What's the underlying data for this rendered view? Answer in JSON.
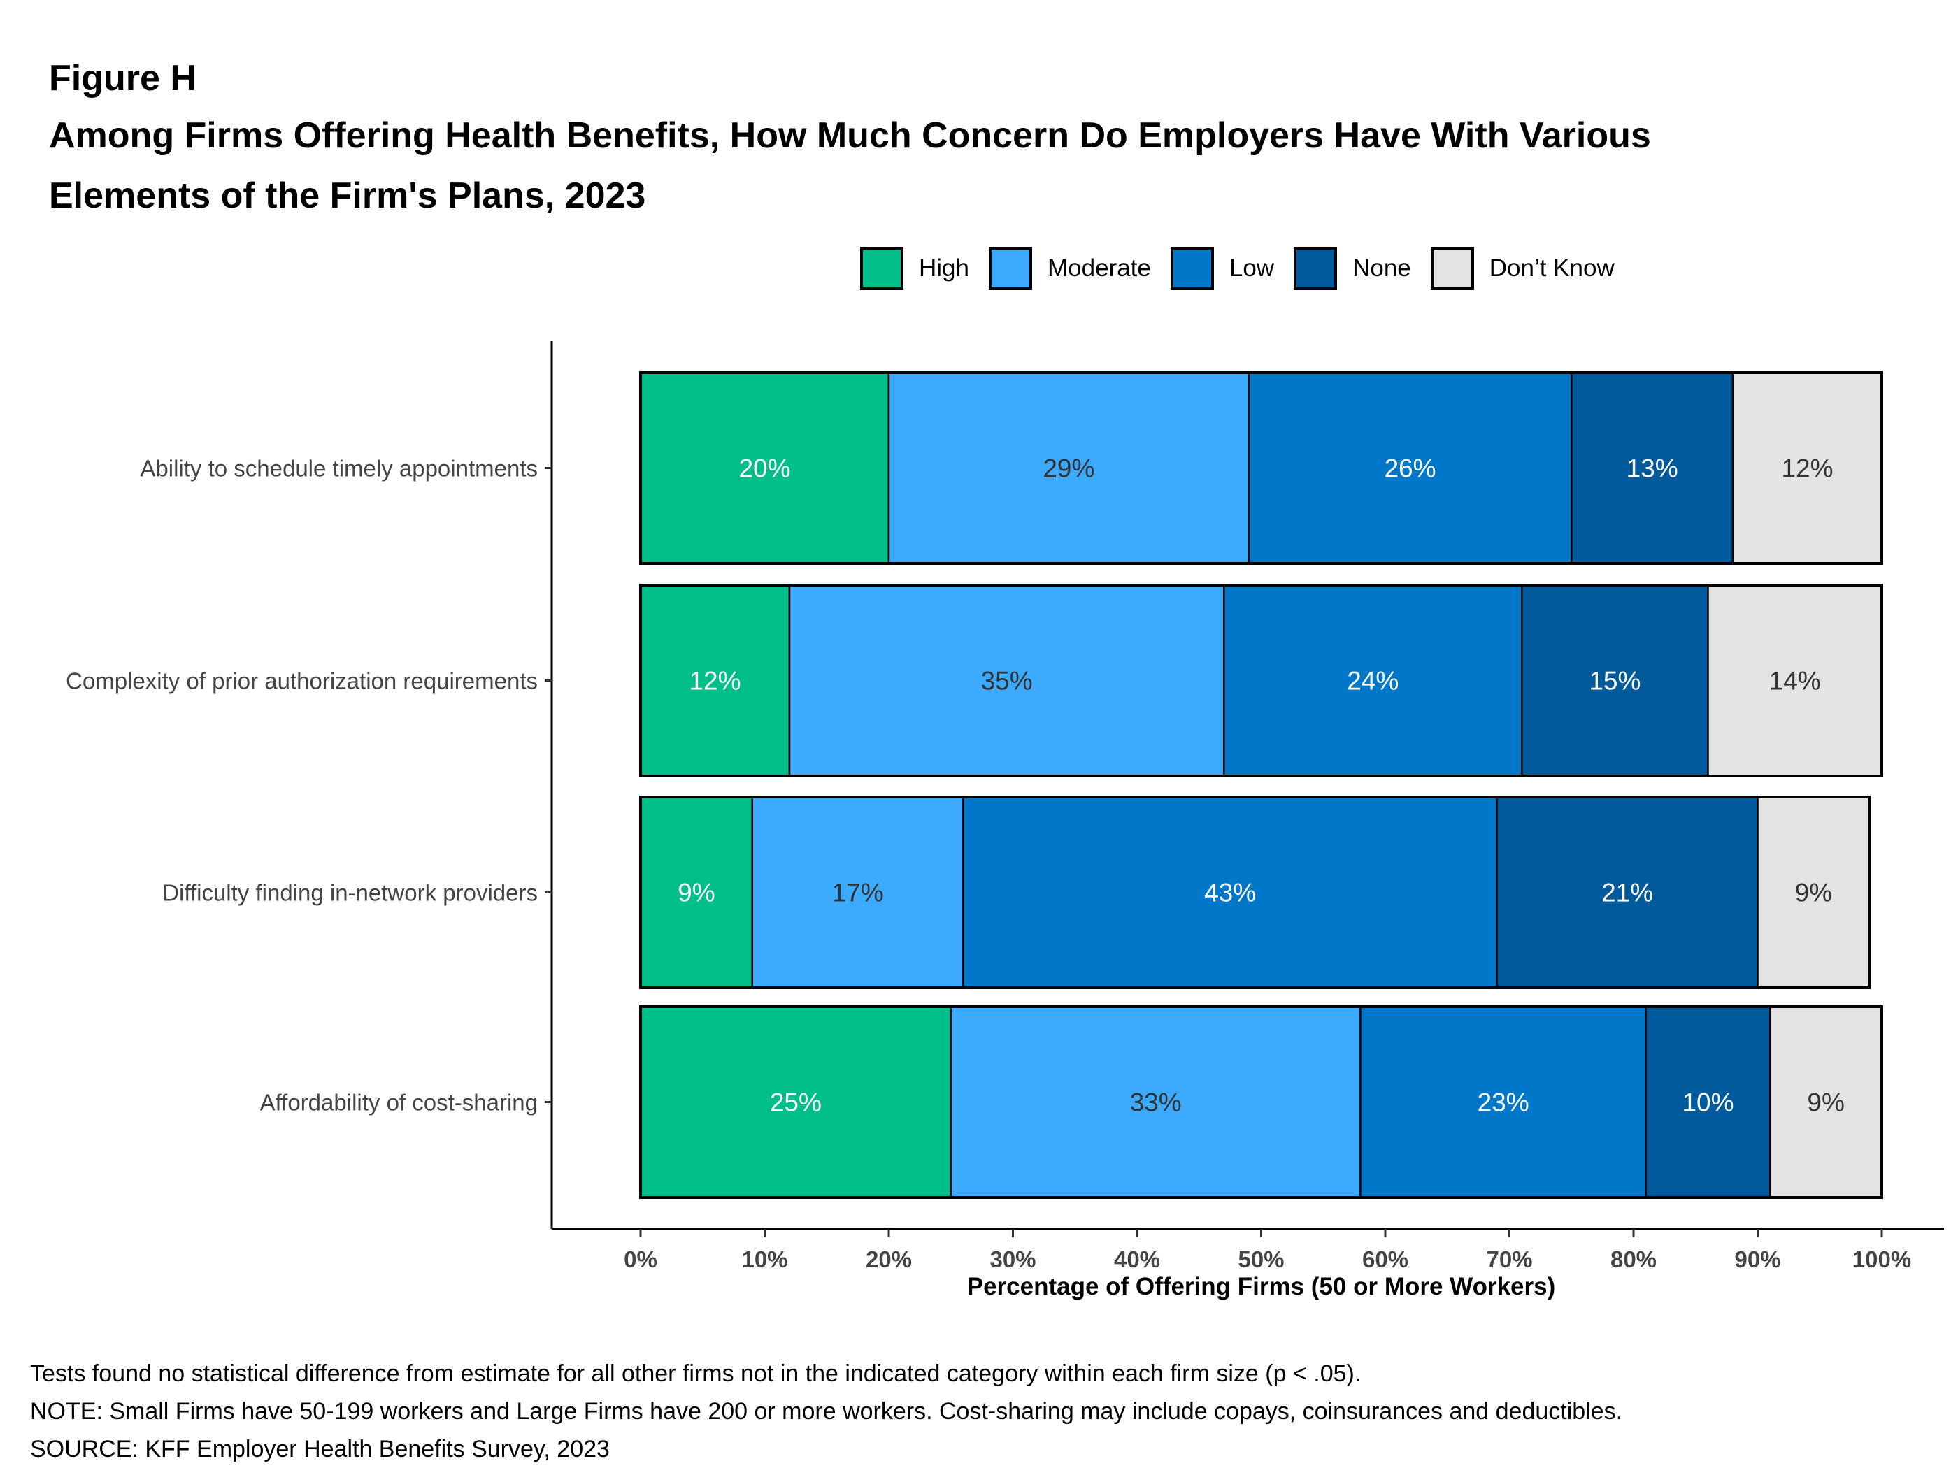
{
  "figure_label": "Figure H",
  "title_line1": "Among Firms Offering Health Benefits, How Much Concern Do Employers Have With Various",
  "title_line2": "Elements of the Firm's Plans, 2023",
  "legend": [
    {
      "label": "High",
      "color": "#00BE87"
    },
    {
      "label": "Moderate",
      "color": "#3CAAFF"
    },
    {
      "label": "Low",
      "color": "#0077C8"
    },
    {
      "label": "None",
      "color": "#005A9B"
    },
    {
      "label": "Don’t Know",
      "color": "#E3E3E3"
    }
  ],
  "footnotes": [
    "Tests found no statistical difference from estimate for all other firms not in the indicated category within each firm size (p < .05).",
    "NOTE: Small Firms have 50-199 workers and Large Firms have 200 or more workers.  Cost-sharing may include copays, coinsurances and deductibles.",
    "SOURCE: KFF Employer Health Benefits Survey, 2023"
  ],
  "chart_data": {
    "type": "bar",
    "orientation": "horizontal",
    "stacked": true,
    "title": "Among Firms Offering Health Benefits, How Much Concern Do Employers Have With Various Elements of the Firm's Plans, 2023",
    "xlabel": "Percentage of Offering Firms (50 or More Workers)",
    "ylabel": "",
    "xlim": [
      0,
      100
    ],
    "x_ticks": [
      "0%",
      "10%",
      "20%",
      "30%",
      "40%",
      "50%",
      "60%",
      "70%",
      "80%",
      "90%",
      "100%"
    ],
    "grid": false,
    "legend_position": "top-right",
    "categories": [
      "Ability to schedule timely appointments",
      "Complexity of prior authorization requirements",
      "Difficulty finding in-network providers",
      "Affordability of cost-sharing"
    ],
    "series": [
      {
        "name": "High",
        "color": "#00BE87",
        "label_color": "#FFFFFF",
        "values": [
          20,
          12,
          9,
          25
        ]
      },
      {
        "name": "Moderate",
        "color": "#3CAAFF",
        "label_color": "#333333",
        "values": [
          29,
          35,
          17,
          33
        ]
      },
      {
        "name": "Low",
        "color": "#0077C8",
        "label_color": "#FFFFFF",
        "values": [
          26,
          24,
          43,
          23
        ]
      },
      {
        "name": "None",
        "color": "#005A9B",
        "label_color": "#FFFFFF",
        "values": [
          13,
          15,
          21,
          10
        ]
      },
      {
        "name": "Don’t Know",
        "color": "#E3E3E3",
        "label_color": "#333333",
        "values": [
          12,
          14,
          9,
          9
        ]
      }
    ]
  }
}
